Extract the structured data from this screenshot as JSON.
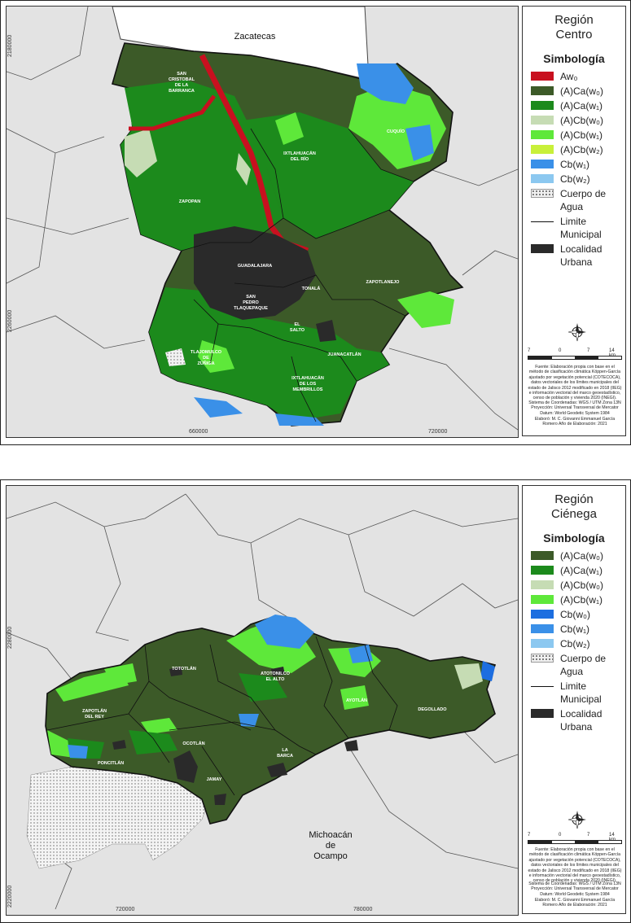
{
  "colors": {
    "Aw0": "#c8101f",
    "ACa_w0": "#3c5a28",
    "ACa_w1": "#1c8a1c",
    "ACb_w0": "#c6dcb4",
    "ACb_w1": "#5ee83a",
    "ACb_w2": "#c8f03a",
    "Cb_w0": "#1d6ee0",
    "Cb_w1": "#3a90e8",
    "Cb_w2": "#8cc8f0",
    "urban": "#2a2a2a",
    "background": "#e6e6e6"
  },
  "centro": {
    "title": "Región\nCentro",
    "legend_heading": "Simbología",
    "legend": [
      {
        "label": "Aw₀",
        "color": "#c8101f",
        "kind": "fill"
      },
      {
        "label": "(A)Ca(w₀)",
        "color": "#3c5a28",
        "kind": "fill"
      },
      {
        "label": "(A)Ca(w₁)",
        "color": "#1c8a1c",
        "kind": "fill"
      },
      {
        "label": "(A)Cb(w₀)",
        "color": "#c6dcb4",
        "kind": "fill"
      },
      {
        "label": "(A)Cb(w₁)",
        "color": "#5ee83a",
        "kind": "fill"
      },
      {
        "label": "(A)Cb(w₂)",
        "color": "#c8f03a",
        "kind": "fill"
      },
      {
        "label": "Cb(w₁)",
        "color": "#3a90e8",
        "kind": "fill"
      },
      {
        "label": "Cb(w₂)",
        "color": "#8cc8f0",
        "kind": "fill"
      },
      {
        "label": "Cuerpo de Agua",
        "color": "",
        "kind": "dots"
      },
      {
        "label": "Limite Municipal",
        "color": "",
        "kind": "line"
      },
      {
        "label": "Localidad Urbana",
        "color": "#2a2a2a",
        "kind": "fill"
      }
    ],
    "neighbor_label": "Zacatecas",
    "municipalities": [
      "SAN CRISTOBAL DE LA BARRANCA",
      "IXTLAHUACÁN DEL RÍO",
      "CUQUÍO",
      "ZAPOPAN",
      "GUADALAJARA",
      "TONALÁ",
      "ZAPOTLANEJO",
      "SAN PEDRO TLAQUEPAQUE",
      "EL SALTO",
      "TLAJOMULCO DE ZÚÑIGA",
      "JUANACATLÁN",
      "IXTLAHUACÁN DE LOS MEMBRILLOS"
    ],
    "coords": {
      "y_top": "2180000",
      "y_mid": "2260000",
      "x_left": "660000",
      "x_right": "720000"
    },
    "scale": {
      "labels": [
        "7",
        "0",
        "7",
        "14 km"
      ]
    },
    "source": "Fuente: Elaboración propia con base en el método de clasificación climática Köppen-García ajustado por vegetación potencial (COTECOCA), datos vectoriales de los límites municipales del estado de Jalisco 2012 modificado en 2018 (IIEG) e información vectorial del marco geoestadístico, censo de población y vivienda 2020 (INEGI).",
    "crs": "Sistema de Coordenadas: WGS / UTM Zona 13N Proyección: Universal Transversal de Mercator Datum: World Geodetic System 1984",
    "author": "Elaboró: M. C. Giovanni Emmanuel García Romero Año de Elaboración: 2021"
  },
  "cienega": {
    "title": "Región\nCiénega",
    "legend_heading": "Simbología",
    "legend": [
      {
        "label": "(A)Ca(w₀)",
        "color": "#3c5a28",
        "kind": "fill"
      },
      {
        "label": "(A)Ca(w₁)",
        "color": "#1c8a1c",
        "kind": "fill"
      },
      {
        "label": "(A)Cb(w₀)",
        "color": "#c6dcb4",
        "kind": "fill"
      },
      {
        "label": "(A)Cb(w₁)",
        "color": "#5ee83a",
        "kind": "fill"
      },
      {
        "label": "Cb(w₀)",
        "color": "#1d6ee0",
        "kind": "fill"
      },
      {
        "label": "Cb(w₁)",
        "color": "#3a90e8",
        "kind": "fill"
      },
      {
        "label": "Cb(w₂)",
        "color": "#8cc8f0",
        "kind": "fill"
      },
      {
        "label": "Cuerpo de Agua",
        "color": "",
        "kind": "dots"
      },
      {
        "label": "Limite Municipal",
        "color": "",
        "kind": "line"
      },
      {
        "label": "Localidad Urbana",
        "color": "#2a2a2a",
        "kind": "fill"
      }
    ],
    "neighbor_label": "Michoacán de Ocampo",
    "municipalities": [
      "TOTOTLÁN",
      "ATOTONILCO EL ALTO",
      "AYOTLÁN",
      "ZAPOTLÁN DEL REY",
      "DEGOLLADO",
      "OCOTLÁN",
      "LA BARCA",
      "PONCITLÁN",
      "JAMAY"
    ],
    "coords": {
      "y_top": "2280000",
      "y_bottom": "2220000",
      "x_left": "720000",
      "x_right": "780000"
    },
    "scale": {
      "labels": [
        "7",
        "0",
        "7",
        "14 km"
      ]
    },
    "source": "Fuente: Elaboración propia con base en el método de clasificación climática Köppen-García ajustado por vegetación potencial (COTECOCA), datos vectoriales de los límites municipales del estado de Jalisco 2012 modificado en 2018 (IIEG) e información vectorial del marco geoestadístico, censo de población y vivienda 2020 (INEGI).",
    "crs": "Sistema de Coordenadas: WGS / UTM Zona 13N Proyección: Universal Transversal de Mercator Datum: World Geodetic System 1984",
    "author": "Elaboró: M. C. Giovanni Emmanuel García Romero Año de Elaboración: 2021"
  }
}
